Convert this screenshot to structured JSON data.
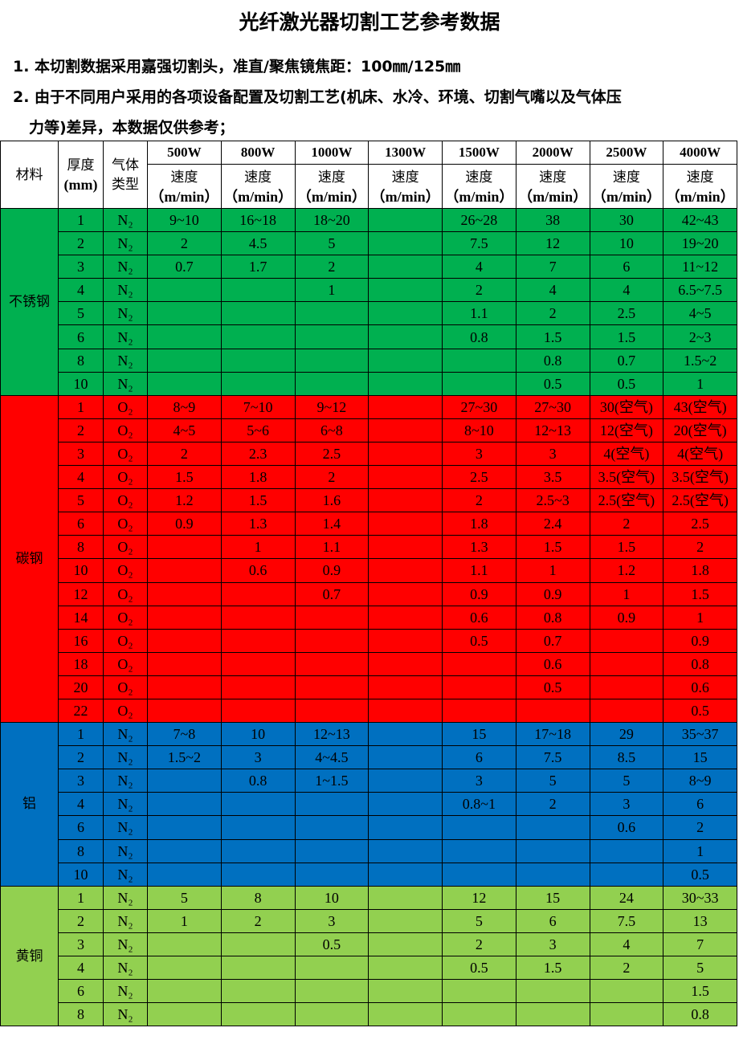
{
  "title": "光纤激光器切割工艺参考数据",
  "notes": [
    "1. 本切割数据采用嘉强切割头，准直/聚焦镜焦距：100㎜/125㎜",
    "2. 由于不同用户采用的各项设备配置及切割工艺(机床、水冷、环境、切割气嘴以及气体压",
    "力等)差异，本数据仅供参考；"
  ],
  "table": {
    "headers": {
      "material": "材料",
      "thickness": "厚度",
      "thickness_unit": "(mm)",
      "gas": "气体",
      "gas2": "类型",
      "speed": "速度",
      "speed_unit": "（m/min）",
      "powers": [
        "500W",
        "800W",
        "1000W",
        "1300W",
        "1500W",
        "2000W",
        "2500W",
        "4000W"
      ]
    },
    "groups": [
      {
        "material": "不锈钢",
        "color": "#00b050",
        "gas": "N₂",
        "rows": [
          [
            "1",
            "9~10",
            "16~18",
            "18~20",
            "",
            "26~28",
            "38",
            "30",
            "42~43"
          ],
          [
            "2",
            "2",
            "4.5",
            "5",
            "",
            "7.5",
            "12",
            "10",
            "19~20"
          ],
          [
            "3",
            "0.7",
            "1.7",
            "2",
            "",
            "4",
            "7",
            "6",
            "11~12"
          ],
          [
            "4",
            "",
            "",
            "1",
            "",
            "2",
            "4",
            "4",
            "6.5~7.5"
          ],
          [
            "5",
            "",
            "",
            "",
            "",
            "1.1",
            "2",
            "2.5",
            "4~5"
          ],
          [
            "6",
            "",
            "",
            "",
            "",
            "0.8",
            "1.5",
            "1.5",
            "2~3"
          ],
          [
            "8",
            "",
            "",
            "",
            "",
            "",
            "0.8",
            "0.7",
            "1.5~2"
          ],
          [
            "10",
            "",
            "",
            "",
            "",
            "",
            "0.5",
            "0.5",
            "1"
          ]
        ]
      },
      {
        "material": "碳钢",
        "color": "#ff0000",
        "gas": "O₂",
        "rows": [
          [
            "1",
            "8~9",
            "7~10",
            "9~12",
            "",
            "27~30",
            "27~30",
            "30(空气)",
            "43(空气)"
          ],
          [
            "2",
            "4~5",
            "5~6",
            "6~8",
            "",
            "8~10",
            "12~13",
            "12(空气)",
            "20(空气)"
          ],
          [
            "3",
            "2",
            "2.3",
            "2.5",
            "",
            "3",
            "3",
            "4(空气)",
            "4(空气)"
          ],
          [
            "4",
            "1.5",
            "1.8",
            "2",
            "",
            "2.5",
            "3.5",
            "3.5(空气)",
            "3.5(空气)"
          ],
          [
            "5",
            "1.2",
            "1.5",
            "1.6",
            "",
            "2",
            "2.5~3",
            "2.5(空气)",
            "2.5(空气)"
          ],
          [
            "6",
            "0.9",
            "1.3",
            "1.4",
            "",
            "1.8",
            "2.4",
            "2",
            "2.5"
          ],
          [
            "8",
            "",
            "1",
            "1.1",
            "",
            "1.3",
            "1.5",
            "1.5",
            "2"
          ],
          [
            "10",
            "",
            "0.6",
            "0.9",
            "",
            "1.1",
            "1",
            "1.2",
            "1.8"
          ],
          [
            "12",
            "",
            "",
            "0.7",
            "",
            "0.9",
            "0.9",
            "1",
            "1.5"
          ],
          [
            "14",
            "",
            "",
            "",
            "",
            "0.6",
            "0.8",
            "0.9",
            "1"
          ],
          [
            "16",
            "",
            "",
            "",
            "",
            "0.5",
            "0.7",
            "",
            "0.9"
          ],
          [
            "18",
            "",
            "",
            "",
            "",
            "",
            "0.6",
            "",
            "0.8"
          ],
          [
            "20",
            "",
            "",
            "",
            "",
            "",
            "0.5",
            "",
            "0.6"
          ],
          [
            "22",
            "",
            "",
            "",
            "",
            "",
            "",
            "",
            "0.5"
          ]
        ]
      },
      {
        "material": "铝",
        "color": "#0070c0",
        "gas": "N₂",
        "rows": [
          [
            "1",
            "7~8",
            "10",
            "12~13",
            "",
            "15",
            "17~18",
            "29",
            "35~37"
          ],
          [
            "2",
            "1.5~2",
            "3",
            "4~4.5",
            "",
            "6",
            "7.5",
            "8.5",
            "15"
          ],
          [
            "3",
            "",
            "0.8",
            "1~1.5",
            "",
            "3",
            "5",
            "5",
            "8~9"
          ],
          [
            "4",
            "",
            "",
            "",
            "",
            "0.8~1",
            "2",
            "3",
            "6"
          ],
          [
            "6",
            "",
            "",
            "",
            "",
            "",
            "",
            "0.6",
            "2"
          ],
          [
            "8",
            "",
            "",
            "",
            "",
            "",
            "",
            "",
            "1"
          ],
          [
            "10",
            "",
            "",
            "",
            "",
            "",
            "",
            "",
            "0.5"
          ]
        ]
      },
      {
        "material": "黄铜",
        "color": "#92d050",
        "gas": "N₂",
        "rows": [
          [
            "1",
            "5",
            "8",
            "10",
            "",
            "12",
            "15",
            "24",
            "30~33"
          ],
          [
            "2",
            "1",
            "2",
            "3",
            "",
            "5",
            "6",
            "7.5",
            "13"
          ],
          [
            "3",
            "",
            "",
            "0.5",
            "",
            "2",
            "3",
            "4",
            "7"
          ],
          [
            "4",
            "",
            "",
            "",
            "",
            "0.5",
            "1.5",
            "2",
            "5"
          ],
          [
            "6",
            "",
            "",
            "",
            "",
            "",
            "",
            "",
            "1.5"
          ],
          [
            "8",
            "",
            "",
            "",
            "",
            "",
            "",
            "",
            "0.8"
          ]
        ]
      }
    ]
  }
}
